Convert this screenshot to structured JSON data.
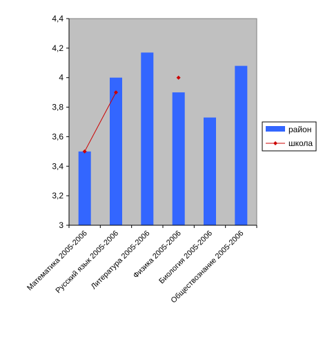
{
  "chart_data": {
    "type": "bar",
    "categories": [
      "Математика 2005-2006",
      "Русский язык 2005-2006",
      "Литература 2005-2006",
      "Физика 2005-2006",
      "Биология 2005-2006",
      "Обществознание 2005-2006"
    ],
    "series": [
      {
        "name": "район",
        "kind": "bar",
        "color": "#3366ff",
        "values": [
          3.5,
          4.0,
          4.17,
          3.9,
          3.73,
          4.08
        ]
      },
      {
        "name": "школа",
        "kind": "line",
        "color": "#cc0000",
        "values": [
          3.5,
          3.9,
          null,
          4.0,
          null,
          null
        ]
      }
    ],
    "ylim": [
      3,
      4.4
    ],
    "yticks": [
      "3",
      "3,2",
      "3,4",
      "3,6",
      "3,8",
      "4",
      "4,2",
      "4,4"
    ],
    "ytick_values": [
      3,
      3.2,
      3.4,
      3.6,
      3.8,
      4.0,
      4.2,
      4.4
    ],
    "plot_background": "#c0c0c0",
    "legend_placement": "right",
    "grid": false
  }
}
